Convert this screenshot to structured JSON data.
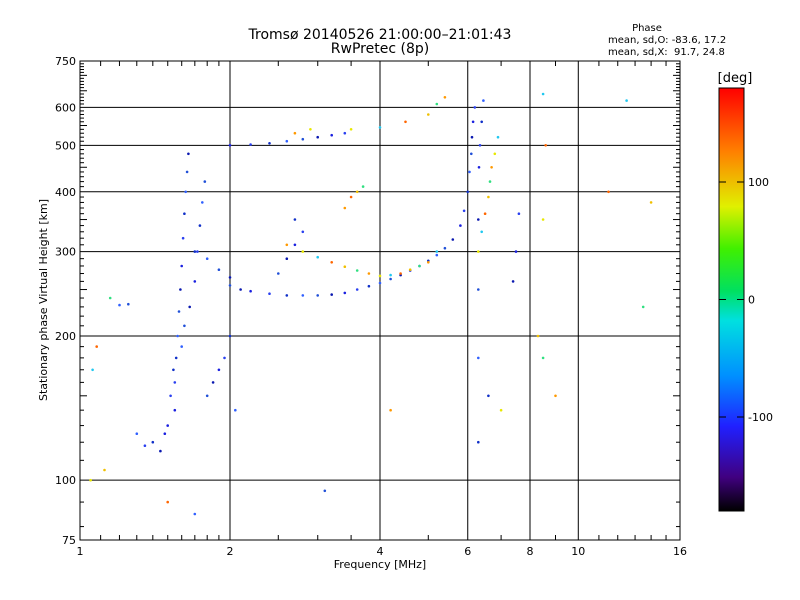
{
  "chart_data": {
    "type": "scatter",
    "title": "Tromsø 20140526 21:00:00–21:01:43",
    "subtitle": "RwPretec (8p)",
    "xlabel": "Frequency [MHz]",
    "ylabel": "Stationary phase Virtual Height [km]",
    "x_scale": "log",
    "y_scale": "log",
    "xlim": [
      1,
      16
    ],
    "ylim": [
      75,
      750
    ],
    "x_ticks": [
      1,
      2,
      4,
      6,
      8,
      10,
      16
    ],
    "y_ticks": [
      75,
      100,
      200,
      300,
      400,
      500,
      600,
      750
    ],
    "grid": true,
    "stats": {
      "header": "Phase",
      "line1": "mean, sd,O: -83.6, 17.2",
      "line2": "mean, sd,X:  91.7, 24.8"
    },
    "colorbar": {
      "label": "[deg]",
      "ticks": [
        100,
        0,
        -100
      ],
      "range": [
        -180,
        180
      ],
      "colormap": "rainbow"
    },
    "series": [
      {
        "mode": "O",
        "points": [
          [
            1.55,
            140
          ],
          [
            1.55,
            160
          ],
          [
            1.56,
            180
          ],
          [
            1.57,
            200
          ],
          [
            1.58,
            225
          ],
          [
            1.59,
            250
          ],
          [
            1.6,
            280
          ],
          [
            1.61,
            320
          ],
          [
            1.62,
            360
          ],
          [
            1.63,
            400
          ],
          [
            1.64,
            440
          ],
          [
            1.65,
            480
          ],
          [
            1.5,
            130
          ],
          [
            1.52,
            150
          ],
          [
            1.54,
            170
          ],
          [
            1.6,
            190
          ],
          [
            1.62,
            210
          ],
          [
            1.66,
            230
          ],
          [
            1.7,
            260
          ],
          [
            1.72,
            300
          ],
          [
            1.74,
            340
          ],
          [
            1.76,
            380
          ],
          [
            1.78,
            420
          ],
          [
            1.45,
            115
          ],
          [
            1.48,
            125
          ],
          [
            1.35,
            118
          ],
          [
            1.4,
            120
          ],
          [
            1.3,
            125
          ],
          [
            1.8,
            150
          ],
          [
            1.85,
            160
          ],
          [
            1.9,
            170
          ],
          [
            1.95,
            180
          ],
          [
            2.0,
            200
          ],
          [
            2.05,
            140
          ],
          [
            2.0,
            255
          ],
          [
            2.1,
            250
          ],
          [
            2.2,
            248
          ],
          [
            2.4,
            245
          ],
          [
            2.6,
            243
          ],
          [
            2.8,
            243
          ],
          [
            3.0,
            243
          ],
          [
            3.2,
            244
          ],
          [
            3.4,
            246
          ],
          [
            3.6,
            250
          ],
          [
            3.8,
            254
          ],
          [
            4.0,
            258
          ],
          [
            4.2,
            263
          ],
          [
            4.4,
            268
          ],
          [
            4.6,
            274
          ],
          [
            4.8,
            280
          ],
          [
            5.0,
            287
          ],
          [
            5.2,
            295
          ],
          [
            5.4,
            305
          ],
          [
            5.6,
            318
          ],
          [
            5.8,
            340
          ],
          [
            5.9,
            365
          ],
          [
            6.0,
            400
          ],
          [
            6.05,
            440
          ],
          [
            6.1,
            480
          ],
          [
            6.12,
            520
          ],
          [
            6.15,
            560
          ],
          [
            6.2,
            600
          ],
          [
            1.7,
            300
          ],
          [
            1.8,
            290
          ],
          [
            1.9,
            275
          ],
          [
            2.0,
            265
          ],
          [
            2.0,
            500
          ],
          [
            2.2,
            502
          ],
          [
            2.4,
            505
          ],
          [
            2.6,
            510
          ],
          [
            2.8,
            515
          ],
          [
            3.0,
            520
          ],
          [
            3.2,
            525
          ],
          [
            3.4,
            530
          ],
          [
            6.3,
            120
          ],
          [
            6.3,
            180
          ],
          [
            6.3,
            250
          ],
          [
            6.3,
            350
          ],
          [
            6.32,
            450
          ],
          [
            6.35,
            500
          ],
          [
            6.4,
            560
          ],
          [
            6.45,
            620
          ],
          [
            2.5,
            270
          ],
          [
            2.6,
            290
          ],
          [
            2.7,
            310
          ],
          [
            2.8,
            330
          ],
          [
            2.7,
            350
          ],
          [
            1.2,
            232
          ],
          [
            1.25,
            233
          ],
          [
            7.4,
            260
          ],
          [
            7.5,
            300
          ],
          [
            7.6,
            360
          ],
          [
            6.6,
            150
          ],
          [
            1.7,
            85
          ],
          [
            3.1,
            95
          ]
        ]
      },
      {
        "mode": "X",
        "points": [
          [
            2.6,
            310
          ],
          [
            2.8,
            300
          ],
          [
            3.0,
            292
          ],
          [
            3.2,
            285
          ],
          [
            3.4,
            279
          ],
          [
            3.6,
            274
          ],
          [
            3.8,
            270
          ],
          [
            4.0,
            267
          ],
          [
            4.2,
            268
          ],
          [
            4.4,
            270
          ],
          [
            4.6,
            275
          ],
          [
            4.8,
            280
          ],
          [
            5.0,
            285
          ],
          [
            6.3,
            300
          ],
          [
            6.4,
            330
          ],
          [
            6.5,
            360
          ],
          [
            6.6,
            390
          ],
          [
            6.65,
            420
          ],
          [
            6.7,
            450
          ],
          [
            6.8,
            480
          ],
          [
            6.9,
            520
          ],
          [
            3.5,
            390
          ],
          [
            3.6,
            400
          ],
          [
            3.7,
            410
          ],
          [
            3.4,
            370
          ],
          [
            3.5,
            540
          ],
          [
            4.0,
            545
          ],
          [
            4.5,
            560
          ],
          [
            5.0,
            580
          ],
          [
            5.2,
            610
          ],
          [
            5.4,
            630
          ],
          [
            1.05,
            100
          ],
          [
            1.06,
            170
          ],
          [
            1.08,
            190
          ],
          [
            1.12,
            105
          ],
          [
            1.15,
            240
          ],
          [
            2.7,
            530
          ],
          [
            2.9,
            540
          ],
          [
            8.5,
            640
          ],
          [
            8.6,
            500
          ],
          [
            8.3,
            200
          ],
          [
            8.5,
            180
          ],
          [
            9.0,
            150
          ],
          [
            8.5,
            350
          ],
          [
            12.5,
            620
          ],
          [
            11.5,
            400
          ],
          [
            14.0,
            380
          ],
          [
            13.5,
            230
          ],
          [
            4.2,
            140
          ],
          [
            7.0,
            140
          ],
          [
            5.2,
            300
          ],
          [
            1.5,
            90
          ]
        ]
      }
    ]
  }
}
